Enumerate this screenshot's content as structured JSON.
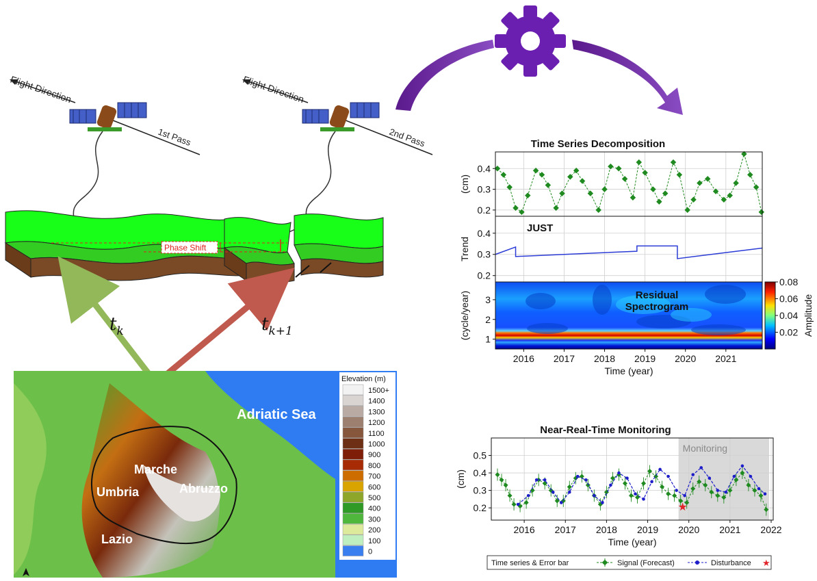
{
  "passes": {
    "left": {
      "flight": "Flight Direction",
      "pass": "1st Pass",
      "time": "t",
      "time_sub": "k"
    },
    "right": {
      "flight": "Flight Direction",
      "pass": "2nd Pass",
      "time": "t",
      "time_sub": "k+1"
    },
    "phase_shift": "Phase Shift"
  },
  "map": {
    "sea": "Adriatic Sea",
    "regions": [
      "Marche",
      "Umbria",
      "Abruzzo",
      "Lazio"
    ],
    "legend_title": "Elevation (m)",
    "legend": [
      {
        "label": "1500+",
        "color": "#f2f2f2"
      },
      {
        "label": "1400",
        "color": "#d9d4d2"
      },
      {
        "label": "1300",
        "color": "#b9aba3"
      },
      {
        "label": "1200",
        "color": "#9c7f6f"
      },
      {
        "label": "1100",
        "color": "#86563d"
      },
      {
        "label": "1000",
        "color": "#6e3014"
      },
      {
        "label": "900",
        "color": "#7e1d08"
      },
      {
        "label": "800",
        "color": "#a72c05"
      },
      {
        "label": "700",
        "color": "#cd6d00"
      },
      {
        "label": "600",
        "color": "#d9a400"
      },
      {
        "label": "500",
        "color": "#8ea62a"
      },
      {
        "label": "400",
        "color": "#2f9a25"
      },
      {
        "label": "300",
        "color": "#4fb83c"
      },
      {
        "label": "200",
        "color": "#dde99b"
      },
      {
        "label": "100",
        "color": "#bfeebf"
      },
      {
        "label": "0",
        "color": "#3a7ff0"
      }
    ]
  },
  "panel_titles": {
    "decomposition": "Time Series Decomposition",
    "monitoring": "Near-Real-Time Monitoring"
  },
  "chart_data": [
    {
      "type": "line",
      "title": "Time Series Decomposition",
      "ylabel": "(cm)",
      "xlim": [
        2015.3,
        2021.9
      ],
      "ylim": [
        0.17,
        0.48
      ],
      "yticks": [
        0.2,
        0.3,
        0.4
      ],
      "grid": true,
      "series": [
        {
          "color": "#1f8a1f",
          "x": [
            2015.35,
            2015.5,
            2015.65,
            2015.8,
            2015.95,
            2016.1,
            2016.3,
            2016.45,
            2016.6,
            2016.8,
            2016.95,
            2017.15,
            2017.3,
            2017.45,
            2017.65,
            2017.85,
            2018.0,
            2018.15,
            2018.35,
            2018.5,
            2018.7,
            2018.85,
            2019.0,
            2019.2,
            2019.35,
            2019.5,
            2019.7,
            2019.85,
            2020.05,
            2020.2,
            2020.35,
            2020.55,
            2020.75,
            2020.95,
            2021.1,
            2021.25,
            2021.45,
            2021.6,
            2021.75,
            2021.88
          ],
          "y": [
            0.4,
            0.37,
            0.31,
            0.21,
            0.19,
            0.27,
            0.39,
            0.37,
            0.32,
            0.21,
            0.28,
            0.36,
            0.39,
            0.34,
            0.28,
            0.2,
            0.3,
            0.41,
            0.4,
            0.35,
            0.26,
            0.43,
            0.38,
            0.3,
            0.24,
            0.28,
            0.43,
            0.37,
            0.2,
            0.25,
            0.33,
            0.35,
            0.29,
            0.25,
            0.27,
            0.33,
            0.47,
            0.37,
            0.31,
            0.19
          ]
        }
      ]
    },
    {
      "type": "line",
      "title": "JUST",
      "ylabel": "Trend",
      "xlim": [
        2015.3,
        2021.9
      ],
      "ylim": [
        0.17,
        0.48
      ],
      "yticks": [
        0.2,
        0.3,
        0.4
      ],
      "grid": true,
      "series": [
        {
          "color": "#2b3bd6",
          "x": [
            2015.3,
            2015.8,
            2015.8,
            2018.8,
            2018.8,
            2019.8,
            2019.8,
            2021.9
          ],
          "y": [
            0.3,
            0.335,
            0.29,
            0.315,
            0.34,
            0.34,
            0.28,
            0.33
          ]
        }
      ]
    },
    {
      "type": "heatmap",
      "title": "Residual Spectrogram",
      "ylabel": "(cycle/year)",
      "xlabel": "Time (year)",
      "xlim": [
        2015.3,
        2021.9
      ],
      "ylim": [
        0.5,
        3.9
      ],
      "yticks": [
        1,
        2,
        3
      ],
      "xticks": [
        2016,
        2017,
        2018,
        2019,
        2020,
        2021
      ],
      "colorbar": {
        "label": "Amplitude",
        "range": [
          0.0,
          0.08
        ],
        "ticks": [
          0.02,
          0.04,
          0.06,
          0.08
        ]
      }
    },
    {
      "type": "line",
      "title": "Near-Real-Time Monitoring",
      "ylabel": "(cm)",
      "xlabel": "Time (year)",
      "xlim": [
        2015.2,
        2022.05
      ],
      "ylim": [
        0.13,
        0.6
      ],
      "yticks": [
        0.2,
        0.3,
        0.4,
        0.5
      ],
      "xticks": [
        2016,
        2017,
        2018,
        2019,
        2020,
        2021,
        2022
      ],
      "grid": true,
      "annotations": [
        {
          "text": "Monitoring",
          "x_start": 2019.75,
          "x_end": 2021.95
        }
      ],
      "legend": {
        "placement": "bottom",
        "title": "Time series & Error bar",
        "entries": [
          "Signal (Forecast)",
          "Disturbance"
        ]
      },
      "series": [
        {
          "name": "Signal (Forecast)",
          "color": "#1d1dc9",
          "x": [
            2015.85,
            2016.1,
            2016.3,
            2016.5,
            2016.7,
            2016.9,
            2017.1,
            2017.3,
            2017.5,
            2017.7,
            2017.9,
            2018.1,
            2018.3,
            2018.5,
            2018.7,
            2018.9,
            2019.1,
            2019.3,
            2019.5,
            2019.7,
            2019.9,
            2020.1,
            2020.3,
            2020.5,
            2020.7,
            2020.9,
            2021.1,
            2021.3,
            2021.5,
            2021.7,
            2021.85
          ],
          "y": [
            0.22,
            0.27,
            0.36,
            0.36,
            0.29,
            0.23,
            0.29,
            0.38,
            0.36,
            0.27,
            0.23,
            0.33,
            0.4,
            0.37,
            0.28,
            0.25,
            0.35,
            0.42,
            0.38,
            0.3,
            0.27,
            0.39,
            0.43,
            0.37,
            0.3,
            0.29,
            0.38,
            0.44,
            0.38,
            0.31,
            0.28
          ]
        }
      ],
      "time_series": {
        "color": "#1f8a1f",
        "x": [
          2015.35,
          2015.45,
          2015.55,
          2015.65,
          2015.75,
          2015.9,
          2016.05,
          2016.2,
          2016.35,
          2016.5,
          2016.65,
          2016.8,
          2016.95,
          2017.1,
          2017.25,
          2017.4,
          2017.55,
          2017.7,
          2017.85,
          2018.0,
          2018.15,
          2018.3,
          2018.45,
          2018.6,
          2018.75,
          2018.9,
          2019.05,
          2019.2,
          2019.35,
          2019.5,
          2019.65,
          2019.8,
          2019.95,
          2020.1,
          2020.25,
          2020.4,
          2020.55,
          2020.7,
          2020.85,
          2021.0,
          2021.15,
          2021.3,
          2021.45,
          2021.6,
          2021.75,
          2021.88
        ],
        "y": [
          0.39,
          0.36,
          0.33,
          0.27,
          0.22,
          0.21,
          0.23,
          0.3,
          0.36,
          0.34,
          0.3,
          0.24,
          0.24,
          0.32,
          0.37,
          0.38,
          0.33,
          0.27,
          0.22,
          0.29,
          0.37,
          0.39,
          0.34,
          0.27,
          0.26,
          0.34,
          0.41,
          0.38,
          0.32,
          0.28,
          0.27,
          0.24,
          0.23,
          0.31,
          0.35,
          0.33,
          0.29,
          0.27,
          0.26,
          0.3,
          0.36,
          0.4,
          0.33,
          0.3,
          0.27,
          0.19
        ]
      },
      "disturbance": {
        "color": "#e0242a",
        "x": 2019.85,
        "y": 0.205
      }
    }
  ]
}
